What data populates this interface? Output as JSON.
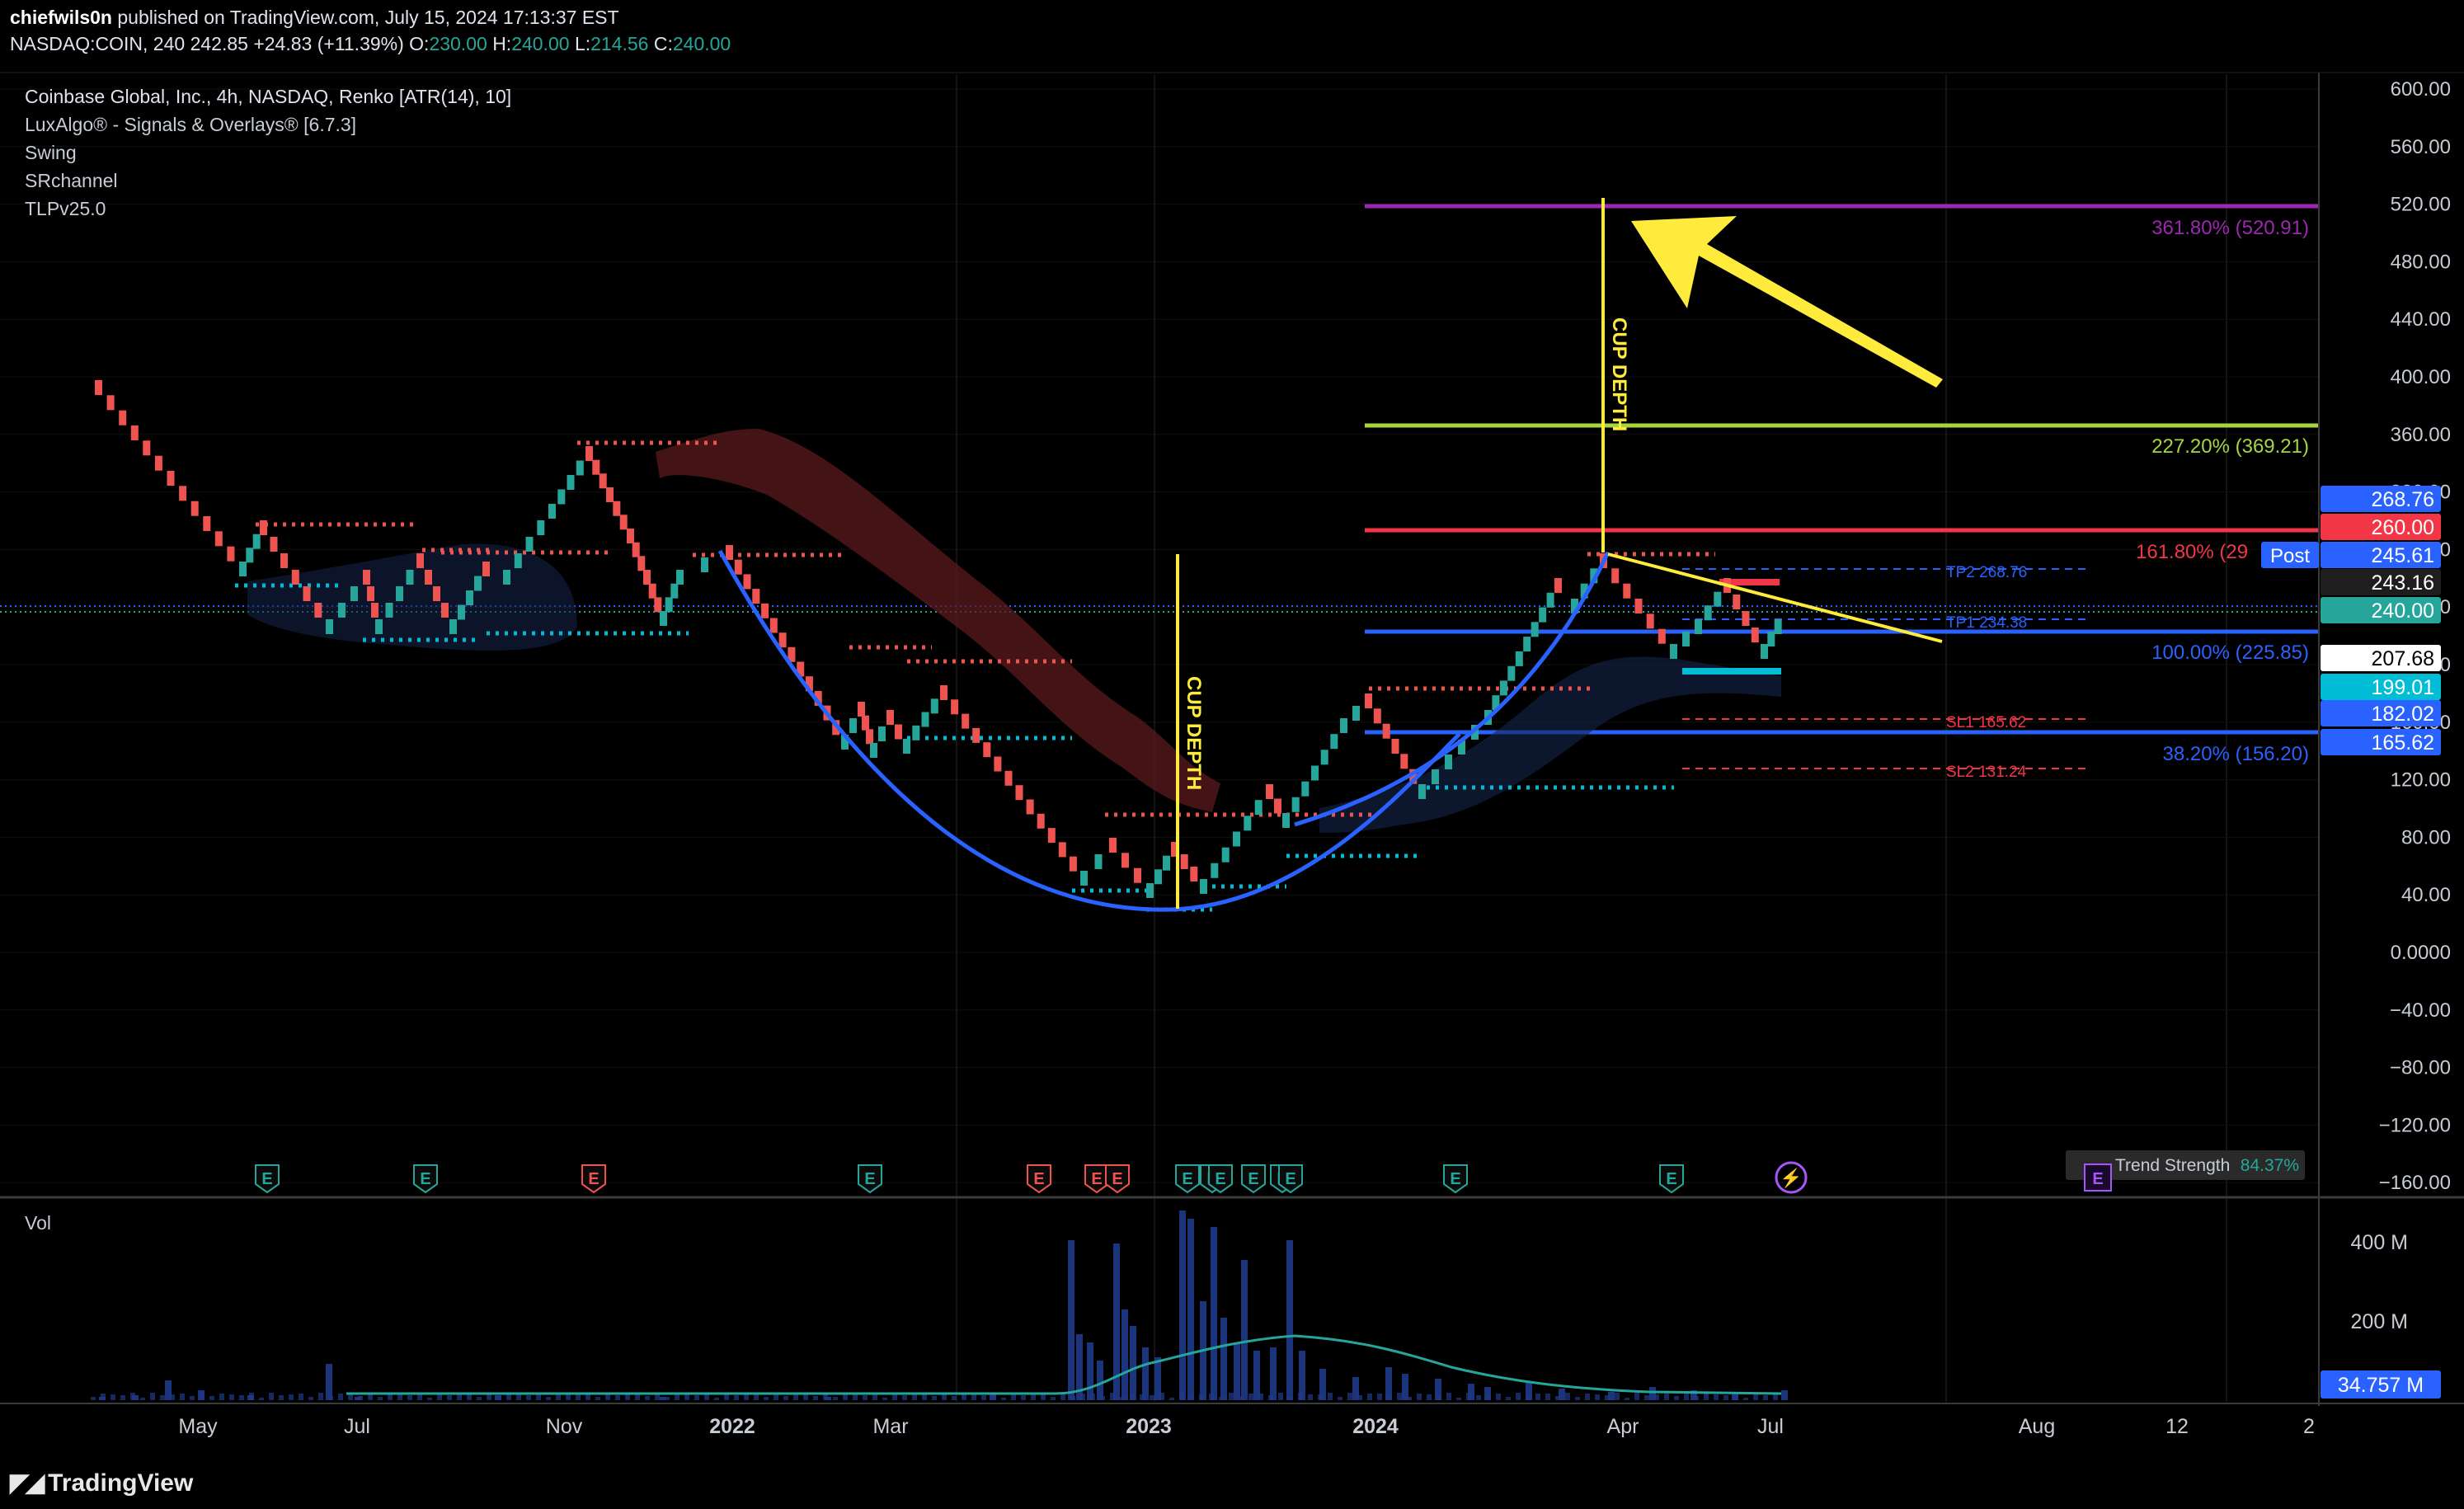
{
  "header": {
    "author": "chiefwils0n",
    "published": "published on TradingView.com, July 15, 2024 17:13:37 EST",
    "symbol": "NASDAQ:COIN, 240",
    "last": "242.85",
    "change": "+24.83 (+11.39%)",
    "ohlc": {
      "o_label": "O:",
      "o": "230.00",
      "h_label": "H:",
      "h": "240.00",
      "l_label": "L:",
      "l": "214.56",
      "c_label": "C:",
      "c": "240.00"
    }
  },
  "legend": {
    "title": "Coinbase Global, Inc., 4h, NASDAQ, Renko [ATR(14), 10]",
    "indicators": [
      "LuxAlgo® - Signals & Overlays® [6.7.3]",
      "Swing",
      "SRchannel",
      "TLPv25.0"
    ]
  },
  "price_axis": {
    "ticks": [
      "600.00",
      "560.00",
      "520.00",
      "480.00",
      "440.00",
      "400.00",
      "360.00",
      "320.00",
      "280.00",
      "240.00",
      "200.00",
      "160.00",
      "120.00",
      "80.00",
      "40.00",
      "0.0000",
      "−40.00",
      "−80.00",
      "−120.00",
      "−160.00"
    ],
    "badges": [
      {
        "text": "268.76",
        "value": 268.76,
        "bg": "#2962ff",
        "fg": "#ffffff"
      },
      {
        "text": "260.00",
        "value": 260.0,
        "bg": "#f23645",
        "fg": "#ffffff"
      },
      {
        "text": "245.61",
        "value": 245.61,
        "bg": "#2962ff",
        "fg": "#ffffff"
      },
      {
        "text": "243.16",
        "value": 243.16,
        "bg": "#1e1e1e",
        "fg": "#ffffff"
      },
      {
        "text": "240.00",
        "value": 240.0,
        "bg": "#26a69a",
        "fg": "#ffffff"
      },
      {
        "text": "207.68",
        "value": 207.68,
        "bg": "#ffffff",
        "fg": "#000000"
      },
      {
        "text": "199.01",
        "value": 199.01,
        "bg": "#00bcd4",
        "fg": "#ffffff"
      },
      {
        "text": "182.02",
        "value": 182.02,
        "bg": "#2962ff",
        "fg": "#ffffff"
      },
      {
        "text": "165.62",
        "value": 165.62,
        "bg": "#2962ff",
        "fg": "#ffffff"
      }
    ],
    "post_label": "Post"
  },
  "time_axis": {
    "labels": [
      "May",
      "Jul",
      "Nov",
      "2022",
      "Mar",
      "2023",
      "2024",
      "Apr",
      "Jul",
      "Aug",
      "12",
      "2"
    ]
  },
  "fib_levels": [
    {
      "label": "361.80% (520.91)",
      "value": 520.91,
      "color": "#9c27b0"
    },
    {
      "label": "227.20% (369.21)",
      "value": 369.21,
      "color": "#a5d63f"
    },
    {
      "label": "161.80% (29",
      "value": 296.5,
      "color": "#f23645"
    },
    {
      "label": "100.00% (225.85)",
      "value": 225.85,
      "color": "#2962ff"
    },
    {
      "label": "38.20% (156.20)",
      "value": 156.2,
      "color": "#2962ff"
    }
  ],
  "targets": [
    {
      "label": "TP2 268.76",
      "value": 268.76,
      "color": "#2962ff"
    },
    {
      "label": "TP1 234.38",
      "value": 234.38,
      "color": "#2962ff"
    },
    {
      "label": "SL1 165.62",
      "value": 165.62,
      "color": "#f23645"
    },
    {
      "label": "SL2 131.24",
      "value": 131.24,
      "color": "#f23645"
    }
  ],
  "annotations": {
    "cup_depth": "CUP DEPTH"
  },
  "events": {
    "earnings_marker": "E"
  },
  "trend_strength": {
    "label": "Trend Strength",
    "value": "84.37%"
  },
  "volume": {
    "title": "Vol",
    "ticks": [
      "400 M",
      "200 M"
    ],
    "badge": "34.757 M"
  },
  "brand": "TradingView",
  "colors": {
    "up": "#26a69a",
    "down": "#ef5350",
    "cup": "#2962ff",
    "yellow": "#ffeb3b",
    "bg": "#000000",
    "grid": "#1a1a1a"
  }
}
